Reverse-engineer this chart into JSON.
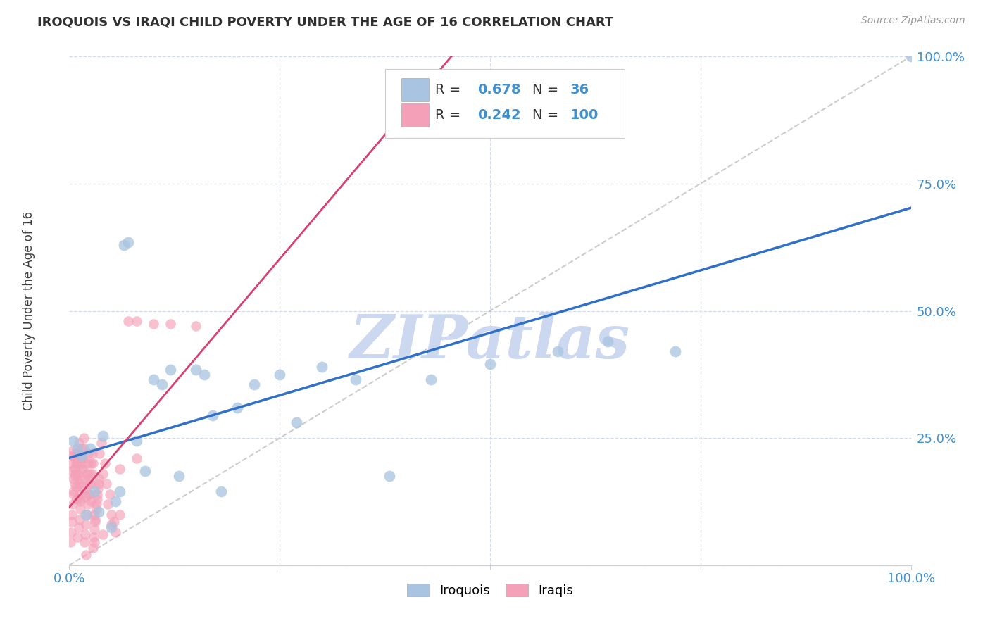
{
  "title": "IROQUOIS VS IRAQI CHILD POVERTY UNDER THE AGE OF 16 CORRELATION CHART",
  "source": "Source: ZipAtlas.com",
  "ylabel": "Child Poverty Under the Age of 16",
  "iroquois_R": 0.678,
  "iroquois_N": 36,
  "iraqis_R": 0.242,
  "iraqis_N": 100,
  "iroquois_color": "#a8c4e0",
  "iraqis_color": "#f4a0b8",
  "iroquois_line_color": "#3070c8",
  "iraqis_line_color": "#d84070",
  "reference_line_color": "#c0c0c0",
  "grid_color": "#d0d8e8",
  "background_color": "#ffffff",
  "watermark": "ZIPatlas",
  "watermark_color": "#ccd8f0",
  "ylim": [
    0,
    1.0
  ],
  "xlim": [
    0,
    1.0
  ],
  "ytick_vals": [
    0.0,
    0.25,
    0.5,
    0.75,
    1.0
  ],
  "ytick_labels": [
    "",
    "25.0%",
    "50.0%",
    "75.0%",
    "100.0%"
  ],
  "xtick_vals": [
    0.0,
    0.25,
    0.5,
    0.75,
    1.0
  ],
  "xtick_labels": [
    "0.0%",
    "",
    "",
    "",
    "100.0%"
  ],
  "tick_color": "#4090d0",
  "legend_value_color": "#4090d0",
  "iroquois_x": [
    0.005,
    0.01,
    0.015,
    0.02,
    0.025,
    0.03,
    0.035,
    0.04,
    0.05,
    0.055,
    0.06,
    0.065,
    0.07,
    0.08,
    0.09,
    0.1,
    0.11,
    0.12,
    0.13,
    0.15,
    0.16,
    0.17,
    0.18,
    0.2,
    0.22,
    0.25,
    0.27,
    0.3,
    0.34,
    0.38,
    0.43,
    0.5,
    0.58,
    0.64,
    0.72,
    1.0
  ],
  "iroquois_y": [
    0.245,
    0.23,
    0.215,
    0.1,
    0.23,
    0.145,
    0.105,
    0.255,
    0.075,
    0.125,
    0.145,
    0.63,
    0.635,
    0.245,
    0.185,
    0.365,
    0.355,
    0.385,
    0.175,
    0.385,
    0.375,
    0.295,
    0.145,
    0.31,
    0.355,
    0.375,
    0.28,
    0.39,
    0.365,
    0.175,
    0.365,
    0.395,
    0.42,
    0.44,
    0.42,
    1.0
  ],
  "iraqis_x": [
    0.001,
    0.002,
    0.003,
    0.004,
    0.005,
    0.005,
    0.006,
    0.007,
    0.007,
    0.008,
    0.008,
    0.009,
    0.009,
    0.01,
    0.01,
    0.011,
    0.011,
    0.012,
    0.013,
    0.014,
    0.015,
    0.015,
    0.016,
    0.017,
    0.018,
    0.019,
    0.02,
    0.021,
    0.022,
    0.023,
    0.024,
    0.025,
    0.026,
    0.027,
    0.028,
    0.03,
    0.031,
    0.032,
    0.033,
    0.035,
    0.036,
    0.038,
    0.04,
    0.042,
    0.044,
    0.046,
    0.048,
    0.05,
    0.053,
    0.055,
    0.001,
    0.002,
    0.003,
    0.003,
    0.004,
    0.005,
    0.006,
    0.007,
    0.008,
    0.009,
    0.01,
    0.011,
    0.012,
    0.013,
    0.013,
    0.014,
    0.015,
    0.015,
    0.016,
    0.017,
    0.018,
    0.019,
    0.02,
    0.021,
    0.022,
    0.023,
    0.024,
    0.025,
    0.026,
    0.027,
    0.028,
    0.029,
    0.03,
    0.031,
    0.032,
    0.033,
    0.034,
    0.035,
    0.06,
    0.08,
    0.02,
    0.03,
    0.04,
    0.05,
    0.06,
    0.07,
    0.08,
    0.1,
    0.12,
    0.15
  ],
  "iraqis_y": [
    0.2,
    0.215,
    0.185,
    0.225,
    0.17,
    0.145,
    0.19,
    0.21,
    0.175,
    0.22,
    0.155,
    0.13,
    0.2,
    0.22,
    0.18,
    0.24,
    0.16,
    0.14,
    0.125,
    0.2,
    0.21,
    0.23,
    0.19,
    0.25,
    0.17,
    0.15,
    0.135,
    0.18,
    0.2,
    0.22,
    0.14,
    0.16,
    0.125,
    0.18,
    0.2,
    0.1,
    0.085,
    0.12,
    0.14,
    0.16,
    0.22,
    0.24,
    0.18,
    0.2,
    0.16,
    0.12,
    0.14,
    0.1,
    0.085,
    0.065,
    0.045,
    0.065,
    0.085,
    0.1,
    0.12,
    0.14,
    0.16,
    0.18,
    0.2,
    0.22,
    0.055,
    0.075,
    0.09,
    0.11,
    0.13,
    0.155,
    0.17,
    0.19,
    0.21,
    0.23,
    0.045,
    0.06,
    0.08,
    0.1,
    0.12,
    0.14,
    0.16,
    0.18,
    0.2,
    0.22,
    0.035,
    0.055,
    0.07,
    0.09,
    0.11,
    0.13,
    0.15,
    0.17,
    0.19,
    0.21,
    0.02,
    0.045,
    0.06,
    0.08,
    0.1,
    0.48,
    0.48,
    0.475,
    0.475,
    0.47
  ]
}
